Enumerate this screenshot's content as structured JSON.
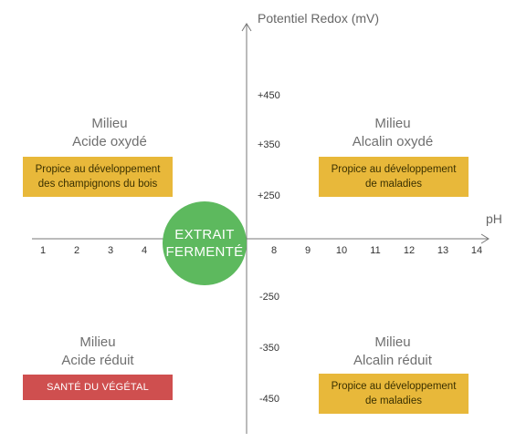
{
  "axes": {
    "y_title": "Potentiel Redox (mV)",
    "x_title": "pH",
    "y_ticks": [
      "+450",
      "+350",
      "+250",
      "-250",
      "-350",
      "-450"
    ],
    "x_ticks": [
      "1",
      "2",
      "3",
      "4",
      "8",
      "9",
      "10",
      "11",
      "12",
      "13",
      "14"
    ]
  },
  "center": {
    "line1": "EXTRAIT",
    "line2": "FERMENTÉ",
    "color": "#5db95e"
  },
  "quadrants": {
    "top_left": {
      "title_line1": "Milieu",
      "title_line2": "Acide oxydé",
      "box_line1": "Propice au développement",
      "box_line2": "des champignons du bois",
      "box_color": "#e8b83a"
    },
    "top_right": {
      "title_line1": "Milieu",
      "title_line2": "Alcalin oxydé",
      "box_line1": "Propice au développement",
      "box_line2": "de maladies",
      "box_color": "#e8b83a"
    },
    "bottom_left": {
      "title_line1": "Milieu",
      "title_line2": "Acide réduit",
      "box_label": "SANTÉ DU VÉGÉTAL",
      "box_color": "#cf4f4f"
    },
    "bottom_right": {
      "title_line1": "Milieu",
      "title_line2": "Alcalin réduit",
      "box_line1": "Propice au développement",
      "box_line2": "de maladies",
      "box_color": "#e8b83a"
    }
  }
}
